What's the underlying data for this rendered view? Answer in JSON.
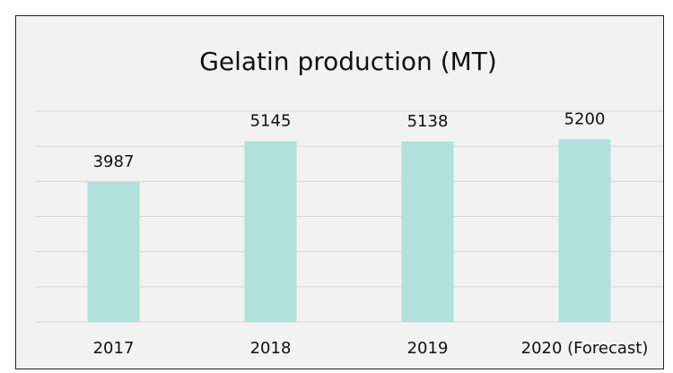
{
  "chart_data": {
    "type": "bar",
    "title": "Gelatin production (MT)",
    "categories": [
      "2017",
      "2018",
      "2019",
      "2020 (Forecast)"
    ],
    "values": [
      3987,
      5145,
      5138,
      5200
    ],
    "color": "#b2e0da",
    "ylim": [
      0,
      6000
    ],
    "yticks": [
      0,
      1000,
      2000,
      3000,
      4000,
      5000,
      6000
    ],
    "grid": true
  }
}
